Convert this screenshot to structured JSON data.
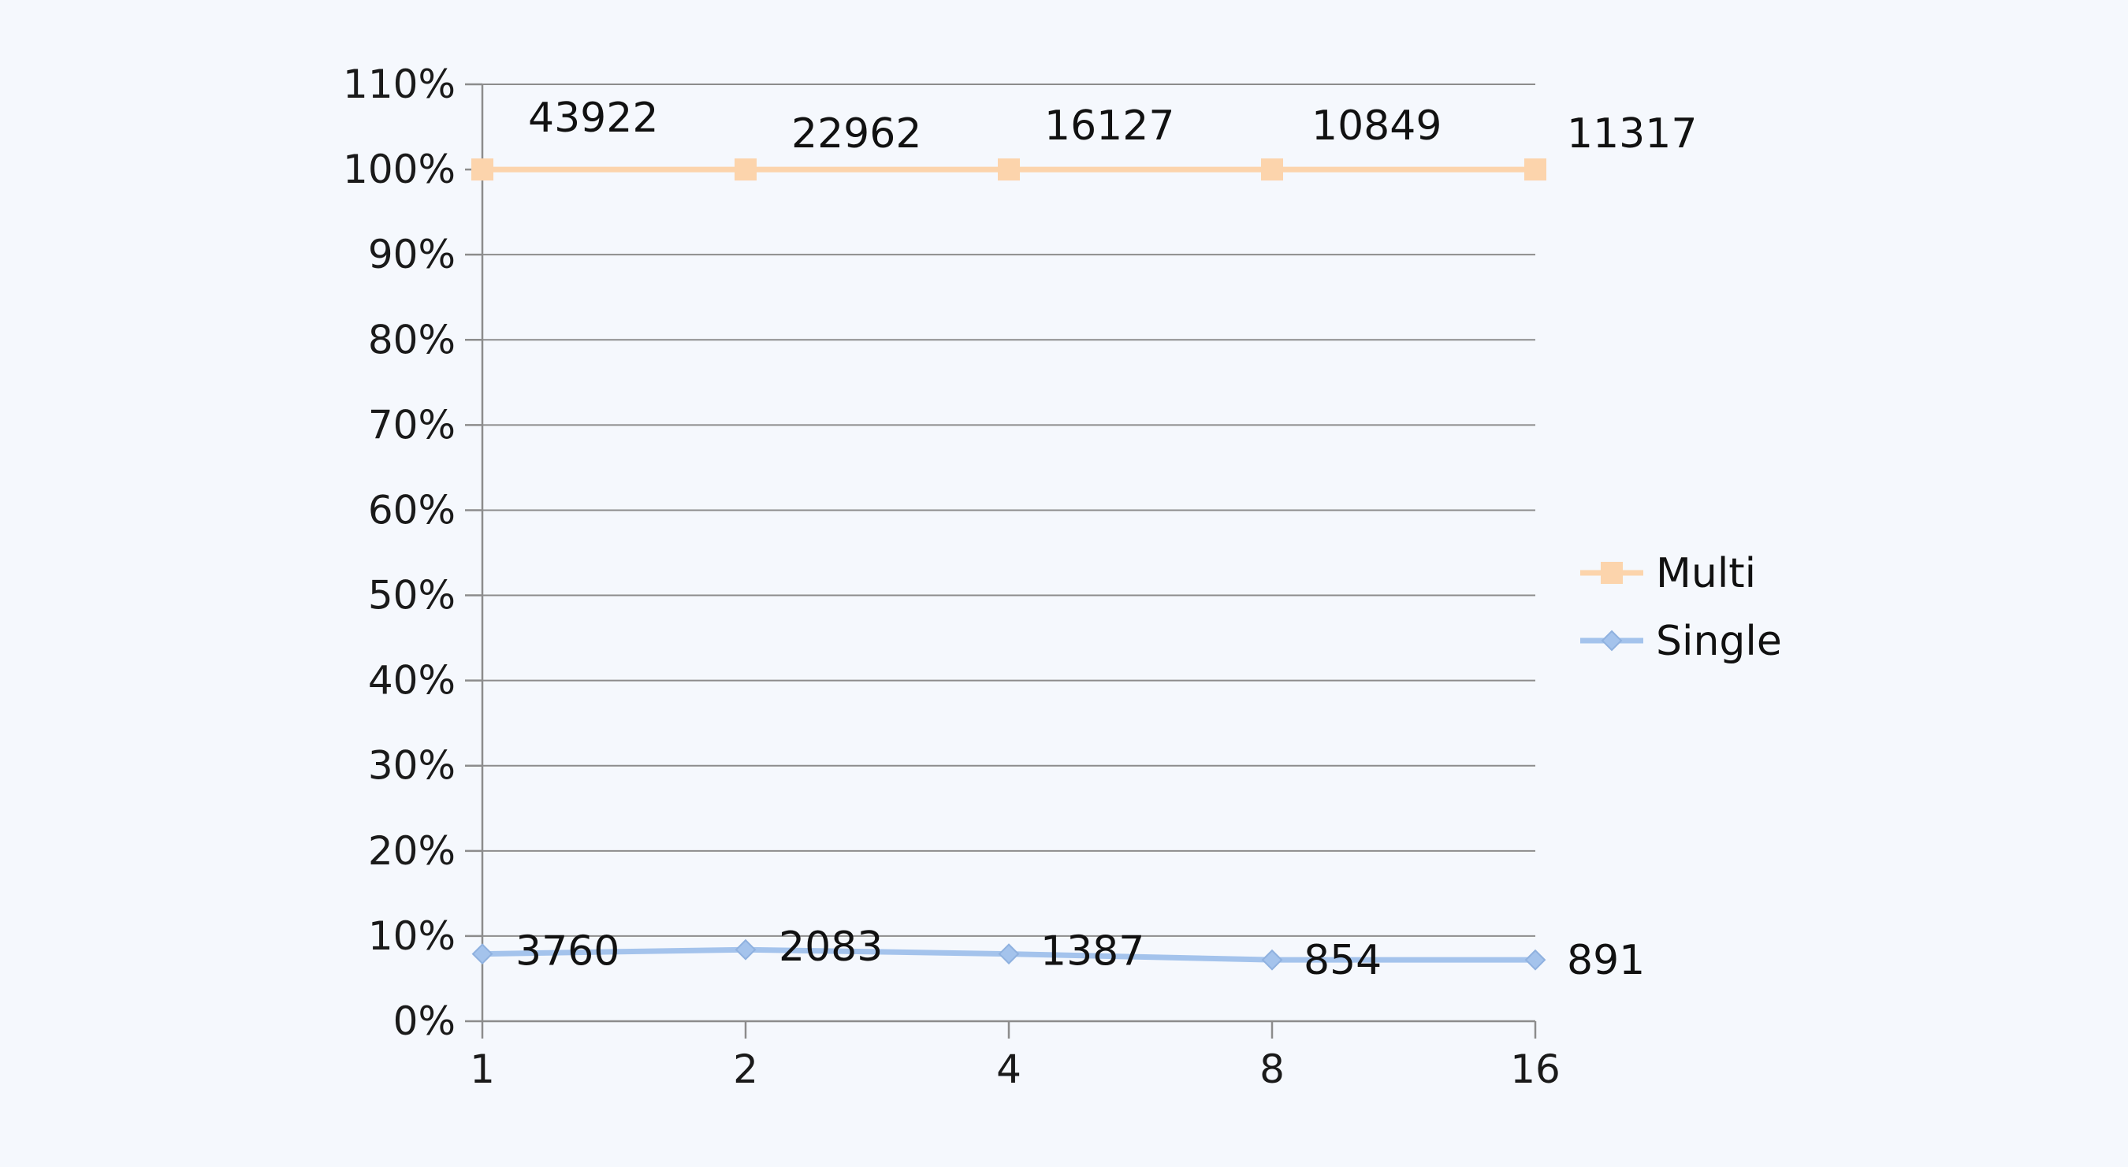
{
  "chart_data": {
    "type": "line",
    "categories": [
      "1",
      "2",
      "4",
      "8",
      "16"
    ],
    "y_ticks": [
      "0%",
      "10%",
      "20%",
      "30%",
      "40%",
      "50%",
      "60%",
      "70%",
      "80%",
      "90%",
      "100%",
      "110%"
    ],
    "ylim": [
      0,
      110
    ],
    "grid": true,
    "legend_position": "right",
    "series": [
      {
        "name": "Multi",
        "values": [
          100,
          100,
          100,
          100,
          100
        ],
        "data_labels": [
          "43922",
          "22962",
          "16127",
          "10849",
          "11317"
        ],
        "color": "#fcd4ac",
        "marker": "square"
      },
      {
        "name": "Single",
        "values": [
          7.9,
          8.4,
          7.9,
          7.2,
          7.2
        ],
        "data_labels": [
          "3760",
          "2083",
          "1387",
          "854",
          "891"
        ],
        "color": "#a4c3ec",
        "marker": "diamond"
      }
    ]
  }
}
